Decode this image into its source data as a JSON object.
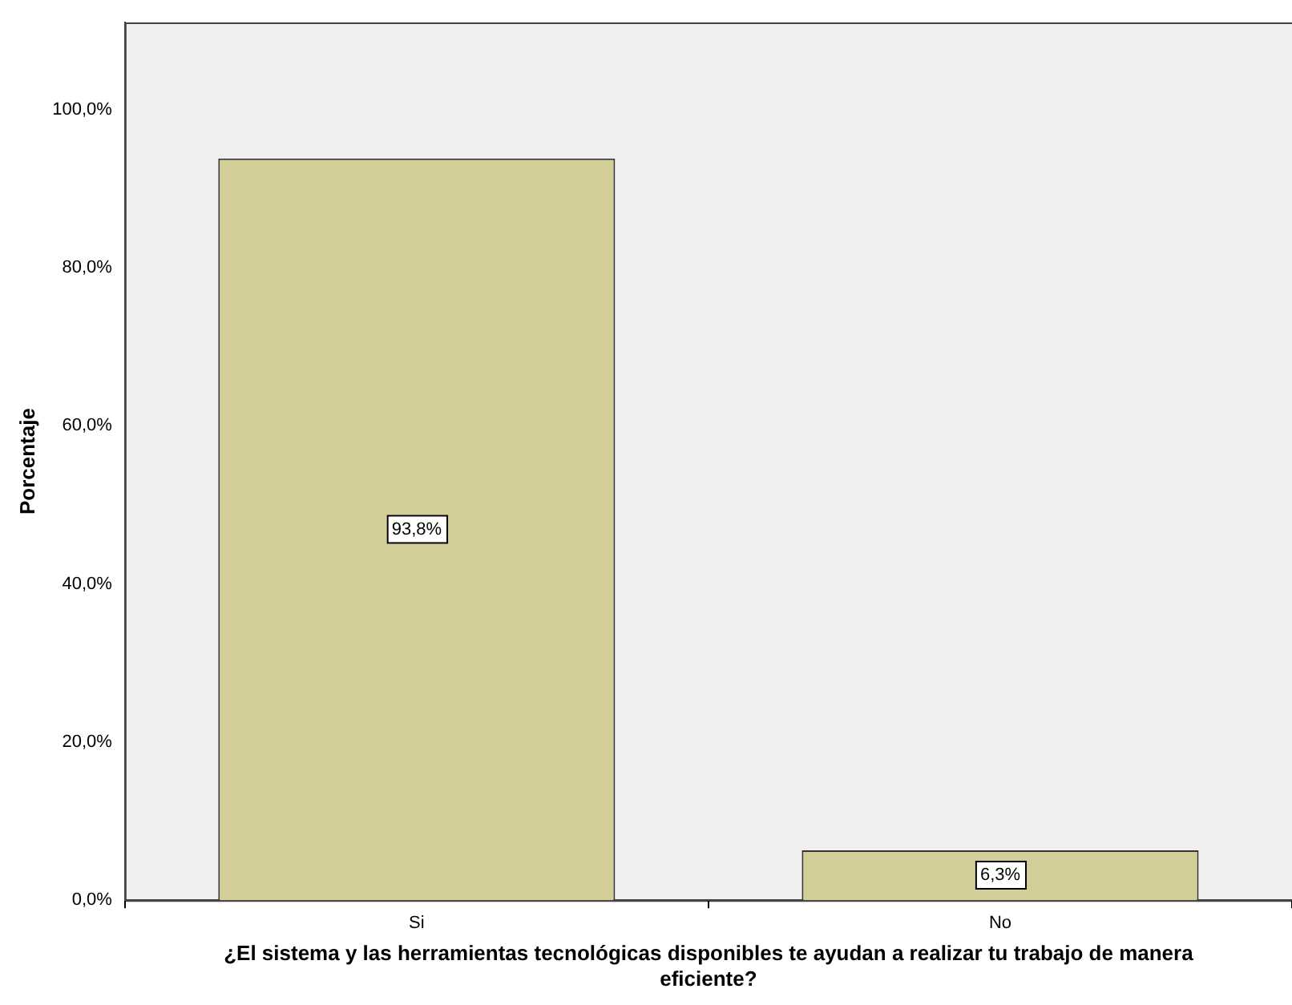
{
  "chart_data": {
    "type": "bar",
    "xlabel": "¿El sistema y las herramientas tecnológicas disponibles te ayudan a realizar tu trabajo de manera eficiente?",
    "ylabel": "Porcentaje",
    "categories": [
      "Si",
      "No"
    ],
    "values": [
      93.8,
      6.3
    ],
    "color": "#d3ce97",
    "value_labels": [
      "93,8%",
      "6,3%"
    ],
    "ylim": [
      0,
      111
    ],
    "yticks": [
      {
        "value": 0,
        "label": "0,0%"
      },
      {
        "value": 20,
        "label": "20,0%"
      },
      {
        "value": 40,
        "label": "40,0%"
      },
      {
        "value": 60,
        "label": "60,0%"
      },
      {
        "value": 80,
        "label": "80,0%"
      },
      {
        "value": 100,
        "label": "100,0%"
      }
    ],
    "grid": false,
    "legend": false
  }
}
